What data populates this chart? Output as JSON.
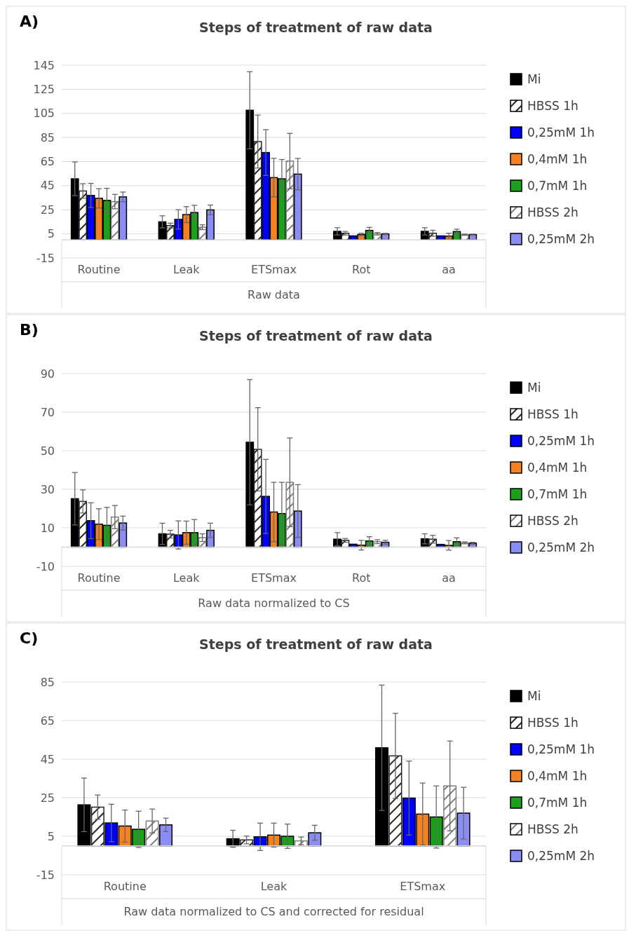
{
  "chart_data": [
    {
      "type": "bar",
      "title": "Steps of treatment of raw data",
      "annotations": [
        "A)"
      ],
      "xlabel": "Raw data",
      "categories": [
        "Routine",
        "Leak",
        "ETSmax",
        "Rot",
        "aa"
      ],
      "ylim": [
        -15,
        145
      ],
      "yticks": [
        -15,
        5,
        25,
        45,
        65,
        85,
        105,
        125,
        145
      ],
      "grid": "y",
      "legend": "right",
      "series": [
        {
          "name": "Mi",
          "color": "#000000",
          "values": [
            50.7,
            15,
            107.6,
            7.1,
            7.1
          ],
          "errors": [
            14,
            5,
            32,
            3,
            3
          ]
        },
        {
          "name": "HBSS 1h",
          "color": "#262626",
          "values": [
            40.6,
            11.9,
            81.6,
            5.5,
            5.5
          ],
          "errors": [
            6,
            2,
            22,
            1.5,
            2.5
          ]
        },
        {
          "name": "0,25mM 1h",
          "color": "#0000ff",
          "values": [
            36.9,
            17,
            72.5,
            3.3,
            3.3
          ],
          "errors": [
            10,
            8,
            19,
            null,
            null
          ]
        },
        {
          "name": "0,4mM 1h",
          "color": "#f58220",
          "values": [
            34.5,
            21,
            51.7,
            4.5,
            3.1
          ],
          "errors": [
            8,
            6.6,
            16,
            1,
            2.4
          ]
        },
        {
          "name": "0,7mM 1h",
          "color": "#1aa01a",
          "values": [
            32.8,
            22.7,
            50.7,
            7.9,
            6.9
          ],
          "errors": [
            10,
            6,
            16,
            2.5,
            2
          ]
        },
        {
          "name": "HBSS 2h",
          "color": "#7f7f7f",
          "values": [
            31.8,
            10.5,
            65.4,
            5.1,
            4.3
          ],
          "errors": [
            6,
            2,
            23,
            1,
            0.5
          ]
        },
        {
          "name": "0,25mM 2h",
          "color": "#8c8cf5",
          "values": [
            35.7,
            24.9,
            54.6,
            4.9,
            4.3
          ],
          "errors": [
            4,
            4,
            13,
            0.5,
            0.5
          ]
        }
      ]
    },
    {
      "type": "bar",
      "title": "Steps of treatment of raw data",
      "annotations": [
        "B)"
      ],
      "xlabel": "Raw data normalized to CS",
      "categories": [
        "Routine",
        "Leak",
        "ETSmax",
        "Rot",
        "aa"
      ],
      "ylim": [
        -10,
        90
      ],
      "yticks": [
        -10,
        10,
        30,
        50,
        70,
        90
      ],
      "grid": "y",
      "legend": "right",
      "series": [
        {
          "name": "Mi",
          "color": "#000000",
          "values": [
            25.1,
            6.9,
            54.4,
            4.1,
            4.3
          ],
          "errors": [
            13.6,
            5.5,
            32.5,
            3.4,
            2.6
          ]
        },
        {
          "name": "HBSS 1h",
          "color": "#262626",
          "values": [
            23.7,
            6.7,
            50.7,
            3.5,
            4.1
          ],
          "errors": [
            6,
            2,
            21.6,
            1,
            2
          ]
        },
        {
          "name": "0,25mM 1h",
          "color": "#0000ff",
          "values": [
            13.7,
            6.3,
            26.3,
            1.5,
            1.4
          ],
          "errors": [
            9.3,
            7.3,
            19.2,
            null,
            null
          ]
        },
        {
          "name": "0,4mM 1h",
          "color": "#f58220",
          "values": [
            11.9,
            7.5,
            18.2,
            1,
            0.9
          ],
          "errors": [
            8,
            6,
            15.4,
            2.5,
            2.5
          ]
        },
        {
          "name": "0,7mM 1h",
          "color": "#1aa01a",
          "values": [
            11.3,
            7.5,
            17.4,
            3.2,
            2.8
          ],
          "errors": [
            9.3,
            6.8,
            16.2,
            2.2,
            2
          ]
        },
        {
          "name": "HBSS 2h",
          "color": "#7f7f7f",
          "values": [
            15.6,
            4.9,
            33.6,
            2.8,
            2.2
          ],
          "errors": [
            6,
            2,
            23,
            1,
            0.5
          ]
        },
        {
          "name": "0,25mM 2h",
          "color": "#8c8cf5",
          "values": [
            12.5,
            8.7,
            18.7,
            2.5,
            2
          ],
          "errors": [
            3.6,
            3.7,
            13.7,
            1,
            0.5
          ]
        }
      ]
    },
    {
      "type": "bar",
      "title": "Steps of treatment of raw data",
      "annotations": [
        "C)"
      ],
      "xlabel": "Raw data normalized to CS and corrected for residual",
      "categories": [
        "Routine",
        "Leak",
        "ETSmax"
      ],
      "ylim": [
        -15,
        85
      ],
      "yticks": [
        -15,
        5,
        25,
        45,
        65,
        85
      ],
      "grid": "y",
      "legend": "right",
      "series": [
        {
          "name": "Mi",
          "color": "#000000",
          "values": [
            21.3,
            3.7,
            50.9
          ],
          "errors": [
            13.9,
            4.4,
            32.5
          ]
        },
        {
          "name": "HBSS 1h",
          "color": "#262626",
          "values": [
            20.1,
            3.1,
            46.7
          ],
          "errors": [
            6.3,
            2,
            22.1
          ]
        },
        {
          "name": "0,25mM 1h",
          "color": "#0000ff",
          "values": [
            11.9,
            4.7,
            24.8
          ],
          "errors": [
            9.7,
            7.1,
            19.2
          ]
        },
        {
          "name": "0,4mM 1h",
          "color": "#f58220",
          "values": [
            10.3,
            5.6,
            16.5
          ],
          "errors": [
            8.3,
            6.2,
            16.1
          ]
        },
        {
          "name": "0,7mM 1h",
          "color": "#1aa01a",
          "values": [
            8.6,
            5,
            15
          ],
          "errors": [
            9.4,
            6.3,
            16.1
          ]
        },
        {
          "name": "HBSS 2h",
          "color": "#7f7f7f",
          "values": [
            12.9,
            2.6,
            31.1
          ],
          "errors": [
            6.2,
            2,
            23.3
          ]
        },
        {
          "name": "0,25mM 2h",
          "color": "#8c8cf5",
          "values": [
            10.9,
            6.8,
            17
          ],
          "errors": [
            3.5,
            3.9,
            13.4
          ]
        }
      ]
    }
  ]
}
